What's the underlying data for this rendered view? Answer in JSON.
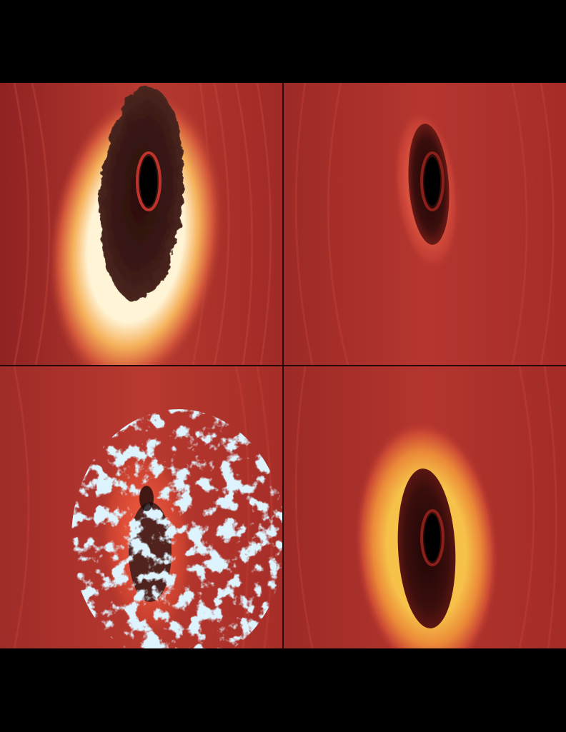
{
  "image": {
    "background": "#000000",
    "disk_color": "#a82c28",
    "streak_color": "#c8453a",
    "panels": [
      {
        "id": "top-left",
        "hole": "black-hole",
        "ring": "bright-yellow-white",
        "core": "dark-smoky"
      },
      {
        "id": "top-right",
        "hole": "black-hole",
        "ring": "faint-red",
        "core": "dark"
      },
      {
        "id": "bottom-left",
        "hole": "black-hole",
        "ring": "orange",
        "core": "blue-plasma-cloud"
      },
      {
        "id": "bottom-right",
        "hole": "black-hole",
        "ring": "orange-yellow",
        "core": "dark"
      }
    ]
  }
}
